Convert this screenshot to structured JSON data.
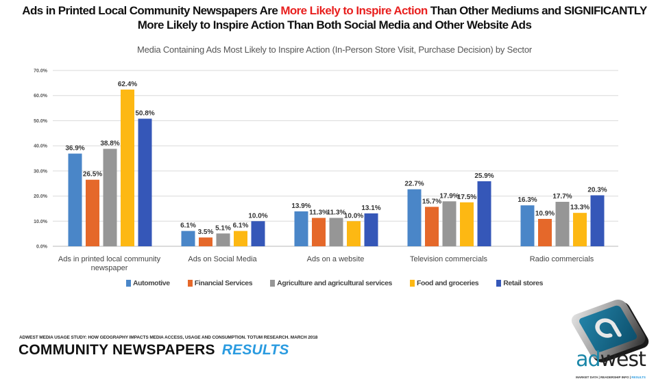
{
  "headline": {
    "part1": "Ads in Printed Local Community Newspapers Are ",
    "highlight": "More Likely to Inspire Action",
    "part2": " Than Other Mediums and SIGNIFICANTLY",
    "line2": "More Likely to Inspire Action Than Both Social Media and Other Website Ads",
    "highlight_color": "#e8201f"
  },
  "chart_data": {
    "type": "bar",
    "title": "Media Containing Ads Most Likely to Inspire Action (In-Person Store Visit, Purchase Decision) by Sector",
    "xlabel": "",
    "ylabel": "",
    "ylim": [
      0,
      70
    ],
    "yticks": [
      "0.0%",
      "10.0%",
      "20.0%",
      "30.0%",
      "40.0%",
      "50.0%",
      "60.0%",
      "70.0%"
    ],
    "grid": true,
    "legend_position": "bottom",
    "categories": [
      "Ads in printed local community newspaper",
      "Ads on Social Media",
      "Ads on a website",
      "Television commercials",
      "Radio commercials"
    ],
    "category_lines": [
      [
        "Ads in printed local community",
        "newspaper"
      ],
      [
        "Ads on Social Media"
      ],
      [
        "Ads on a website"
      ],
      [
        "Television commercials"
      ],
      [
        "Radio commercials"
      ]
    ],
    "series": [
      {
        "name": "Automotive",
        "color": "#4a86c8",
        "values": [
          36.9,
          6.1,
          13.9,
          22.7,
          16.3
        ]
      },
      {
        "name": "Financial Services",
        "color": "#e5682a",
        "values": [
          26.5,
          3.5,
          11.3,
          15.7,
          10.9
        ]
      },
      {
        "name": "Agriculture and agricultural services",
        "color": "#969696",
        "values": [
          38.8,
          5.1,
          11.3,
          17.9,
          17.7
        ]
      },
      {
        "name": "Food and groceries",
        "color": "#fdb813",
        "values": [
          62.4,
          6.1,
          10.0,
          17.5,
          13.3
        ]
      },
      {
        "name": "Retail stores",
        "color": "#3557b8",
        "values": [
          50.8,
          10.0,
          13.1,
          25.9,
          20.3
        ]
      }
    ]
  },
  "footer": {
    "source": "ADWEST MEDIA USAGE STUDY: HOW GEOGRAPHY IMPACTS MEDIA ACCESS, USAGE AND CONSUMPTION. TOTUM RESEARCH. MARCH 2018",
    "brand": "COMMUNITY NEWSPAPERS",
    "brand_accent": "RESULTS"
  },
  "logo": {
    "glyph": "a",
    "word_ad": "ad",
    "word_west": "west",
    "tagline": "MARKET DATA | READERSHIP INFO | ",
    "tagline_accent": "RESULTS"
  }
}
